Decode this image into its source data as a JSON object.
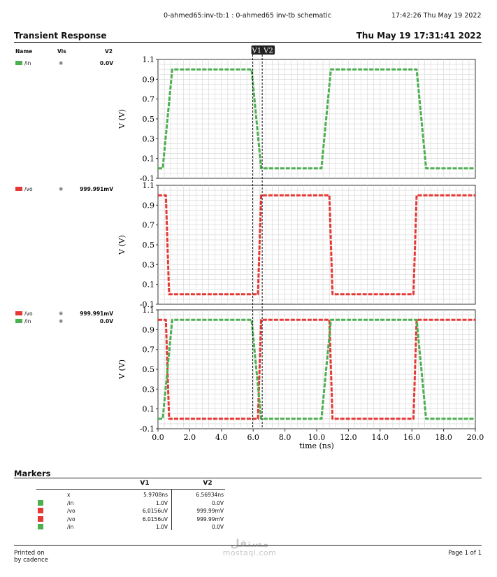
{
  "header": {
    "cell_info": "0-ahmed65:inv-tb:1 : 0-ahmed65 inv-tb schematic",
    "print_time": "17:42:26  Thu May 19 2022",
    "title": "Transient Response",
    "date": "Thu May 19 17:31:41 2022"
  },
  "legend_columns": {
    "name": "Name",
    "vis": "Vis",
    "v2": "V2"
  },
  "legend": [
    [
      {
        "name": "/in",
        "value": "0.0V",
        "color": "#4caf50"
      }
    ],
    [
      {
        "name": "/vo",
        "value": "999.991mV",
        "color": "#e53935"
      }
    ],
    [
      {
        "name": "/vo",
        "value": "999.991mV",
        "color": "#e53935"
      },
      {
        "name": "/in",
        "value": "0.0V",
        "color": "#4caf50"
      }
    ]
  ],
  "colors": {
    "in": "#4caf50",
    "vo": "#e53935"
  },
  "chart_data": {
    "type": "line",
    "xlabel": "time (ns)",
    "ylabel": "V (V)",
    "xlim": [
      0,
      20
    ],
    "ylim": [
      -0.1,
      1.1
    ],
    "x_ticks": [
      "0.0",
      "2.0",
      "4.0",
      "6.0",
      "8.0",
      "10.0",
      "12.0",
      "14.0",
      "16.0",
      "18.0",
      "20.0"
    ],
    "y_ticks": [
      "-0.1",
      "0.1",
      "0.3",
      "0.5",
      "0.7",
      "0.9",
      "1.1"
    ],
    "cursors": [
      {
        "label": "V1",
        "x": 5.9708
      },
      {
        "label": "V2",
        "x": 6.56934
      }
    ],
    "series": [
      {
        "name": "/in",
        "color": "#4caf50",
        "x": [
          0,
          0.3,
          0.9,
          5.9,
          6.5,
          10.3,
          10.9,
          16.3,
          16.9,
          20
        ],
        "y": [
          0,
          0,
          1,
          1,
          0,
          0,
          1,
          1,
          0,
          0
        ]
      },
      {
        "name": "/vo",
        "color": "#e53935",
        "x": [
          0,
          0.5,
          0.7,
          6.3,
          6.5,
          10.8,
          11.0,
          16.1,
          16.3,
          20
        ],
        "y": [
          1,
          1,
          0,
          0,
          1,
          1,
          0,
          0,
          1,
          1
        ]
      }
    ],
    "panels": [
      [
        "/in"
      ],
      [
        "/vo"
      ],
      [
        "/vo",
        "/in"
      ]
    ]
  },
  "markers": {
    "title": "Markers",
    "col_v1": "V1",
    "col_v2": "V2",
    "rows": [
      {
        "color": "",
        "name": "x",
        "v1": "5.9708ns",
        "v2": "6.56934ns"
      },
      {
        "color": "#4caf50",
        "name": "/in",
        "v1": "1.0V",
        "v2": "0.0V"
      },
      {
        "color": "#e53935",
        "name": "/vo",
        "v1": "6.0156uV",
        "v2": "999.99mV"
      },
      {
        "color": "#e53935",
        "name": "/vo",
        "v1": "6.0156uV",
        "v2": "999.99mV"
      },
      {
        "color": "#4caf50",
        "name": "/in",
        "v1": "1.0V",
        "v2": "0.0V"
      }
    ]
  },
  "footer": {
    "printed_on": "Printed on",
    "by": "by cadence",
    "page": "Page 1 of 1"
  },
  "watermark": {
    "main": "مستقل",
    "sub": "mostaql.com"
  }
}
